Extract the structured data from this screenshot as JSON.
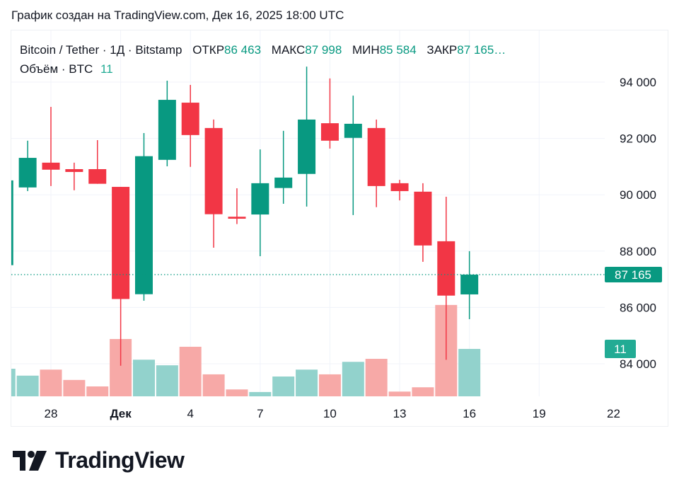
{
  "caption": "График создан на TradingView.com, Дек 16, 2025 18:00 UTC",
  "legend": {
    "symbol": "Bitcoin / Tether · 1Д · Bitstamp",
    "open_label": "ОТКР",
    "open": "86 463",
    "high_label": "МАКС",
    "high": "87 998",
    "low_label": "МИН",
    "low": "85 584",
    "close_label": "ЗАКР",
    "close": "87 165…",
    "volume_title": "Объём · BTC",
    "volume": "11"
  },
  "last_price_label": "87 165",
  "last_volume_label": "11",
  "logo_text": "TradingView",
  "colors": {
    "up": "#089981",
    "down": "#F23645",
    "vol_up": "#92D2CC",
    "vol_down": "#F7A9A7",
    "grid": "#F0F3FA",
    "vol_label": "#22AB94"
  },
  "chart_data": {
    "type": "candlestick",
    "title": "Bitcoin / Tether · 1Д · Bitstamp",
    "y_ticks": [
      "94 000",
      "92 000",
      "90 000",
      "88 000",
      "86 000",
      "84 000"
    ],
    "y_tick_values": [
      94000,
      92000,
      90000,
      88000,
      86000,
      84000
    ],
    "x_ticks": [
      {
        "date": "2025-11-28",
        "label": "28"
      },
      {
        "date": "2025-12-01",
        "label": "Дек"
      },
      {
        "date": "2025-12-04",
        "label": "4"
      },
      {
        "date": "2025-12-07",
        "label": "7"
      },
      {
        "date": "2025-12-10",
        "label": "10"
      },
      {
        "date": "2025-12-13",
        "label": "13"
      },
      {
        "date": "2025-12-16",
        "label": "16"
      },
      {
        "date": "2025-12-19",
        "label": "19"
      },
      {
        "date": "2025-12-22",
        "label": "22"
      }
    ],
    "grid": true,
    "candles": [
      {
        "date": "2025-11-26",
        "open": 87500,
        "high": 90510,
        "low": 87500,
        "close": 90510,
        "volume": 6.4
      },
      {
        "date": "2025-11-27",
        "open": 90260,
        "high": 91920,
        "low": 90130,
        "close": 91310,
        "volume": 4.8
      },
      {
        "date": "2025-11-28",
        "open": 91140,
        "high": 93120,
        "low": 90310,
        "close": 90890,
        "volume": 6.2
      },
      {
        "date": "2025-11-29",
        "open": 90910,
        "high": 91140,
        "low": 90160,
        "close": 90810,
        "volume": 3.8
      },
      {
        "date": "2025-11-30",
        "open": 90910,
        "high": 91940,
        "low": 90390,
        "close": 90390,
        "volume": 2.3
      },
      {
        "date": "2025-12-01",
        "open": 90280,
        "high": 90280,
        "low": 83930,
        "close": 86300,
        "volume": 13.3
      },
      {
        "date": "2025-12-02",
        "open": 86470,
        "high": 92190,
        "low": 86240,
        "close": 91370,
        "volume": 8.5
      },
      {
        "date": "2025-12-03",
        "open": 91240,
        "high": 94050,
        "low": 91010,
        "close": 93370,
        "volume": 7.2
      },
      {
        "date": "2025-12-04",
        "open": 93270,
        "high": 93900,
        "low": 90990,
        "close": 92120,
        "volume": 11.5
      },
      {
        "date": "2025-12-05",
        "open": 92370,
        "high": 92670,
        "low": 88120,
        "close": 89310,
        "volume": 5.1
      },
      {
        "date": "2025-12-06",
        "open": 89220,
        "high": 90230,
        "low": 88960,
        "close": 89150,
        "volume": 1.6
      },
      {
        "date": "2025-12-07",
        "open": 89300,
        "high": 91610,
        "low": 87820,
        "close": 90410,
        "volume": 1.0
      },
      {
        "date": "2025-12-08",
        "open": 90240,
        "high": 92270,
        "low": 89680,
        "close": 90610,
        "volume": 4.6
      },
      {
        "date": "2025-12-09",
        "open": 90740,
        "high": 94550,
        "low": 89580,
        "close": 92670,
        "volume": 6.2
      },
      {
        "date": "2025-12-10",
        "open": 92540,
        "high": 94130,
        "low": 91640,
        "close": 91920,
        "volume": 5.1
      },
      {
        "date": "2025-12-11",
        "open": 92020,
        "high": 93520,
        "low": 89280,
        "close": 92520,
        "volume": 8.0
      },
      {
        "date": "2025-12-12",
        "open": 92370,
        "high": 92670,
        "low": 89560,
        "close": 90310,
        "volume": 8.7
      },
      {
        "date": "2025-12-13",
        "open": 90410,
        "high": 90530,
        "low": 89800,
        "close": 90130,
        "volume": 1.1
      },
      {
        "date": "2025-12-14",
        "open": 90110,
        "high": 90410,
        "low": 87620,
        "close": 88200,
        "volume": 2.1
      },
      {
        "date": "2025-12-15",
        "open": 88350,
        "high": 89930,
        "low": 84140,
        "close": 86420,
        "volume": 21.2
      },
      {
        "date": "2025-12-16",
        "open": 86463,
        "high": 87998,
        "low": 85584,
        "close": 87165,
        "volume": 11
      }
    ],
    "last_price": 87165,
    "last_volume": 11
  }
}
